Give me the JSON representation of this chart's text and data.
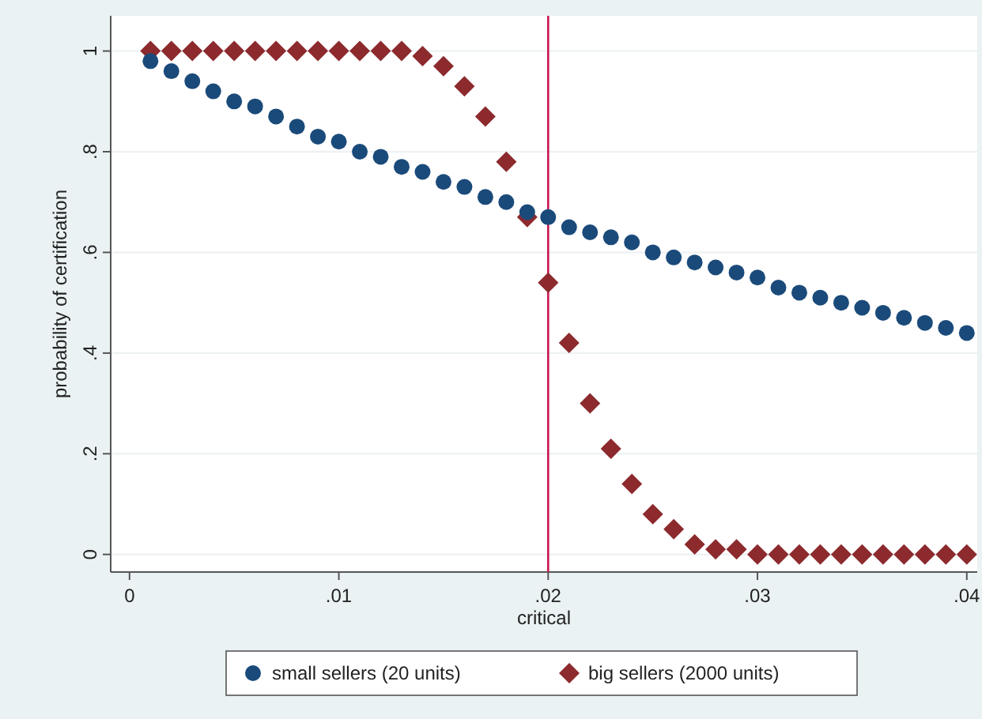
{
  "chart_data": {
    "type": "scatter",
    "xlabel": "critical",
    "ylabel": "probability of certification",
    "x": [
      0.001,
      0.002,
      0.003,
      0.004,
      0.005,
      0.006,
      0.007,
      0.008,
      0.009,
      0.01,
      0.011,
      0.012,
      0.013,
      0.014,
      0.015,
      0.016,
      0.017,
      0.018,
      0.019,
      0.02,
      0.021,
      0.022,
      0.023,
      0.024,
      0.025,
      0.026,
      0.027,
      0.028,
      0.029,
      0.03,
      0.031,
      0.032,
      0.033,
      0.034,
      0.035,
      0.036,
      0.037,
      0.038,
      0.039,
      0.04
    ],
    "series": [
      {
        "name": "small sellers (20 units)",
        "color": "#1a4a7a",
        "marker": "circle",
        "values": [
          0.98,
          0.96,
          0.94,
          0.92,
          0.9,
          0.89,
          0.87,
          0.85,
          0.83,
          0.82,
          0.8,
          0.79,
          0.77,
          0.76,
          0.74,
          0.73,
          0.71,
          0.7,
          0.68,
          0.67,
          0.65,
          0.64,
          0.63,
          0.62,
          0.6,
          0.59,
          0.58,
          0.57,
          0.56,
          0.55,
          0.53,
          0.52,
          0.51,
          0.5,
          0.49,
          0.48,
          0.47,
          0.46,
          0.45,
          0.44
        ]
      },
      {
        "name": "big sellers (2000 units)",
        "color": "#8c2a2e",
        "marker": "diamond",
        "values": [
          1,
          1,
          1,
          1,
          1,
          1,
          1,
          1,
          1,
          1,
          1,
          1,
          1,
          0.99,
          0.97,
          0.93,
          0.87,
          0.78,
          0.67,
          0.54,
          0.42,
          0.3,
          0.21,
          0.14,
          0.08,
          0.05,
          0.02,
          0.01,
          0.01,
          0,
          0,
          0,
          0,
          0,
          0,
          0,
          0,
          0,
          0,
          0
        ]
      }
    ],
    "xlim": [
      -0.0009,
      0.0405
    ],
    "ylim": [
      -0.035,
      1.07
    ],
    "xticks": [
      0,
      {
        "value": 0.01,
        "label": ".01"
      },
      {
        "value": 0.02,
        "label": ".02"
      },
      {
        "value": 0.03,
        "label": ".03"
      },
      {
        "value": 0.04,
        "label": ".04"
      }
    ],
    "yticks": [
      0,
      {
        "value": 0.2,
        "label": ".2"
      },
      {
        "value": 0.4,
        "label": ".4"
      },
      {
        "value": 0.6,
        "label": ".6"
      },
      {
        "value": 0.8,
        "label": ".8"
      },
      1
    ],
    "grid": "y",
    "legend": "bottom",
    "ref_lines": [
      {
        "axis": "x",
        "value": 0.02,
        "color": "#c8174f"
      }
    ]
  }
}
